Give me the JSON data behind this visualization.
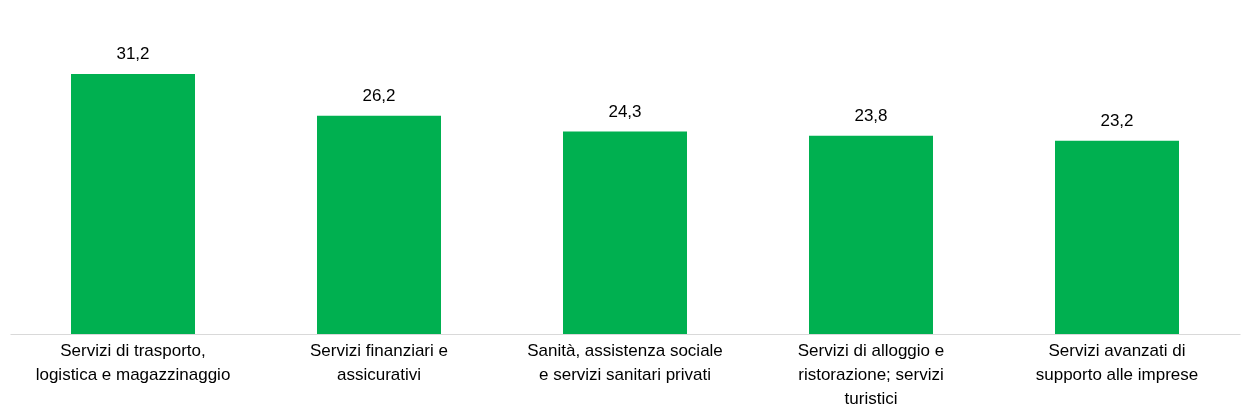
{
  "chart_data": {
    "type": "bar",
    "categories": [
      "Servizi di trasporto, logistica e magazzinaggio",
      "Servizi finanziari e assicurativi",
      "Sanità, assistenza sociale e servizi sanitari privati",
      "Servizi di alloggio e ristorazione; servizi turistici",
      "Servizi avanzati di supporto alle imprese"
    ],
    "values": [
      31.2,
      26.2,
      24.3,
      23.8,
      23.2
    ],
    "value_labels": [
      "31,2",
      "26,2",
      "24,3",
      "23,8",
      "23,2"
    ],
    "color": "#00b050"
  }
}
